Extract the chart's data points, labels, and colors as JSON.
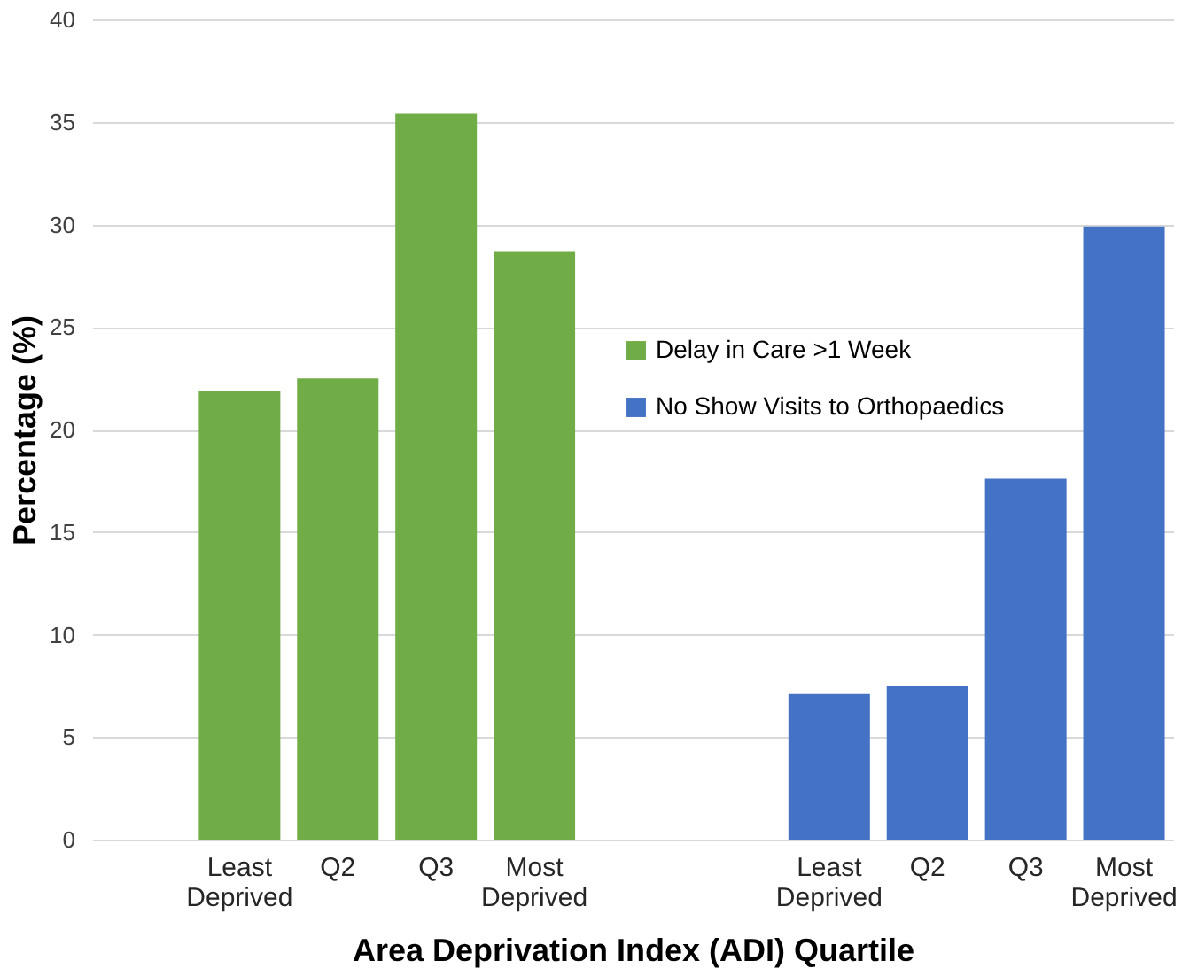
{
  "chart_data": {
    "type": "bar",
    "xlabel": "Area Deprivation Index (ADI) Quartile",
    "ylabel": "Percentage (%)",
    "categories": [
      null,
      "Least Deprived",
      "Q2",
      "Q3",
      "Most Deprived",
      null,
      null,
      "Least Deprived",
      "Q2",
      "Q3",
      "Most Deprived"
    ],
    "series": [
      {
        "name": "Delay in Care >1 Week",
        "color": "#70ad47",
        "values": [
          null,
          21.9,
          22.5,
          35.4,
          28.7,
          null,
          null,
          null,
          null,
          null,
          null
        ]
      },
      {
        "name": "No Show Visits to Orthopaedics",
        "color": "#4472c4",
        "values": [
          null,
          null,
          null,
          null,
          null,
          null,
          null,
          7.1,
          7.5,
          17.6,
          29.9
        ]
      }
    ],
    "ylim": [
      0,
      40
    ],
    "yticks": [
      0,
      5,
      10,
      15,
      20,
      25,
      30,
      35,
      40
    ],
    "grid": "y",
    "legend": "center"
  }
}
